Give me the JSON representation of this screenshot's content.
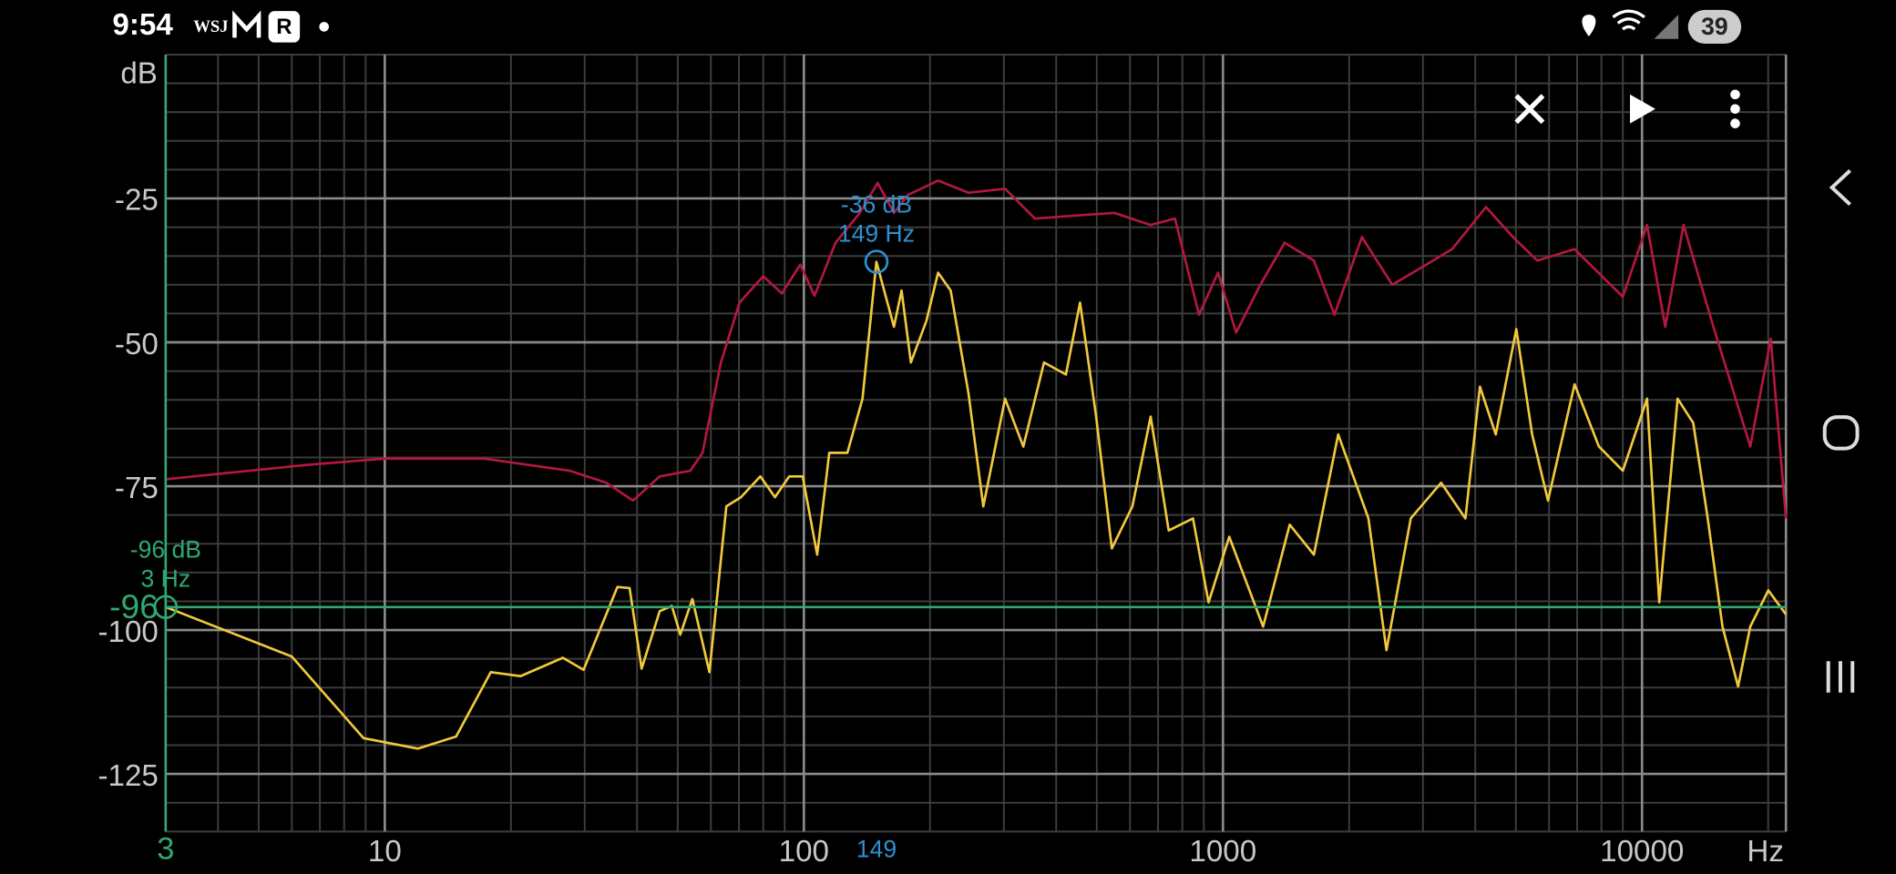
{
  "status_bar": {
    "time": "9:54",
    "icons": [
      "WSJ",
      "R"
    ],
    "battery": "39"
  },
  "chart_data": {
    "type": "line",
    "y_label": "dB",
    "x_label": "Hz",
    "xscale": "log",
    "xlim": [
      3,
      22050
    ],
    "ylim": [
      -135,
      0
    ],
    "xticks": [
      10,
      100,
      1000,
      10000
    ],
    "yticks": [
      -25,
      -50,
      -75,
      -100,
      -125
    ],
    "grid": true,
    "series": [
      {
        "color": "#b3183e",
        "x": [
          3,
          6.5,
          10,
          17.3,
          27.6,
          33.8,
          39.1,
          45.3,
          53.6,
          57.3,
          63.4,
          70.2,
          80,
          88.6,
          98,
          106,
          119,
          136,
          150,
          164,
          177,
          209,
          247,
          302,
          356,
          422,
          550,
          672,
          768,
          877,
          973,
          1075,
          1228,
          1403,
          1648,
          1845,
          2146,
          2535,
          2991,
          3523,
          4242,
          4918,
          5621,
          6902,
          9000,
          10280,
          11360,
          12560,
          14800,
          16380,
          18120,
          20280,
          22050
        ],
        "values": [
          -73.8,
          -71.3,
          -70.2,
          -70.2,
          -72.3,
          -74.4,
          -77.5,
          -73.3,
          -72.3,
          -69.2,
          -53.5,
          -43.1,
          -38.5,
          -41.5,
          -36.5,
          -41.9,
          -32.7,
          -27.5,
          -22.3,
          -27.5,
          -24.4,
          -21.9,
          -24,
          -23.3,
          -28.5,
          -28.1,
          -27.5,
          -29.6,
          -28.5,
          -45.2,
          -37.9,
          -48.3,
          -40,
          -32.7,
          -35.8,
          -45.2,
          -31.7,
          -40,
          -36.9,
          -33.8,
          -26.5,
          -31.7,
          -35.8,
          -33.8,
          -42.1,
          -29.6,
          -47.3,
          -29.6,
          -47.3,
          -57.7,
          -68.1,
          -49.4,
          -80.6
        ]
      },
      {
        "color": "#f2c93c",
        "x": [
          3,
          6,
          8.9,
          12,
          14.8,
          17.9,
          21.1,
          26.6,
          29.8,
          35.9,
          38.4,
          41,
          45.3,
          48.4,
          50.7,
          54.2,
          59.5,
          65.3,
          70.8,
          78.7,
          85.3,
          92.3,
          99.3,
          107.6,
          115,
          127,
          138,
          149,
          164,
          171,
          180,
          196,
          209,
          224,
          247,
          268,
          302,
          334,
          374,
          422,
          456,
          498,
          543,
          608,
          672,
          742,
          848,
          924,
          1035,
          1247,
          1443,
          1648,
          1883,
          2224,
          2456,
          2807,
          3316,
          3789,
          4104,
          4477,
          5012,
          5469,
          5963,
          6902,
          7888,
          9000,
          10280,
          10990,
          12160,
          13250,
          14350,
          15560,
          16950,
          18120,
          20010,
          22050
        ],
        "values": [
          -96,
          -104.6,
          -118.8,
          -120.6,
          -118.5,
          -107.3,
          -108,
          -104.8,
          -106.9,
          -92.5,
          -92.7,
          -106.7,
          -96.7,
          -95.8,
          -100.8,
          -94.6,
          -107.3,
          -78.5,
          -76.9,
          -73.3,
          -76.9,
          -73.3,
          -73.3,
          -86.9,
          -69.2,
          -69.2,
          -59.8,
          -36,
          -47.3,
          -41,
          -53.5,
          -46.3,
          -37.9,
          -41,
          -58.8,
          -78.5,
          -59.8,
          -68.1,
          -53.5,
          -55.6,
          -43.1,
          -62.9,
          -85.8,
          -78.5,
          -62.9,
          -82.7,
          -80.6,
          -95.2,
          -83.8,
          -99.4,
          -81.7,
          -86.9,
          -66,
          -80.6,
          -103.5,
          -80.6,
          -74.4,
          -80.6,
          -57.7,
          -66,
          -47.7,
          -66,
          -77.5,
          -57.3,
          -68.1,
          -72.3,
          -59.8,
          -95.2,
          -59.8,
          -64,
          -80.6,
          -99.4,
          -109.8,
          -99.4,
          -93.1,
          -97.3
        ]
      }
    ],
    "cursors": [
      {
        "x": 149,
        "y": -36,
        "label_db": "-36 dB",
        "label_hz": "149 Hz",
        "color": "#2f8fd0",
        "lines": false
      },
      {
        "x": 3,
        "y": -96,
        "label_db": "-96 dB",
        "label_hz": "3 Hz",
        "color": "#2fa872",
        "lines": true
      }
    ]
  }
}
